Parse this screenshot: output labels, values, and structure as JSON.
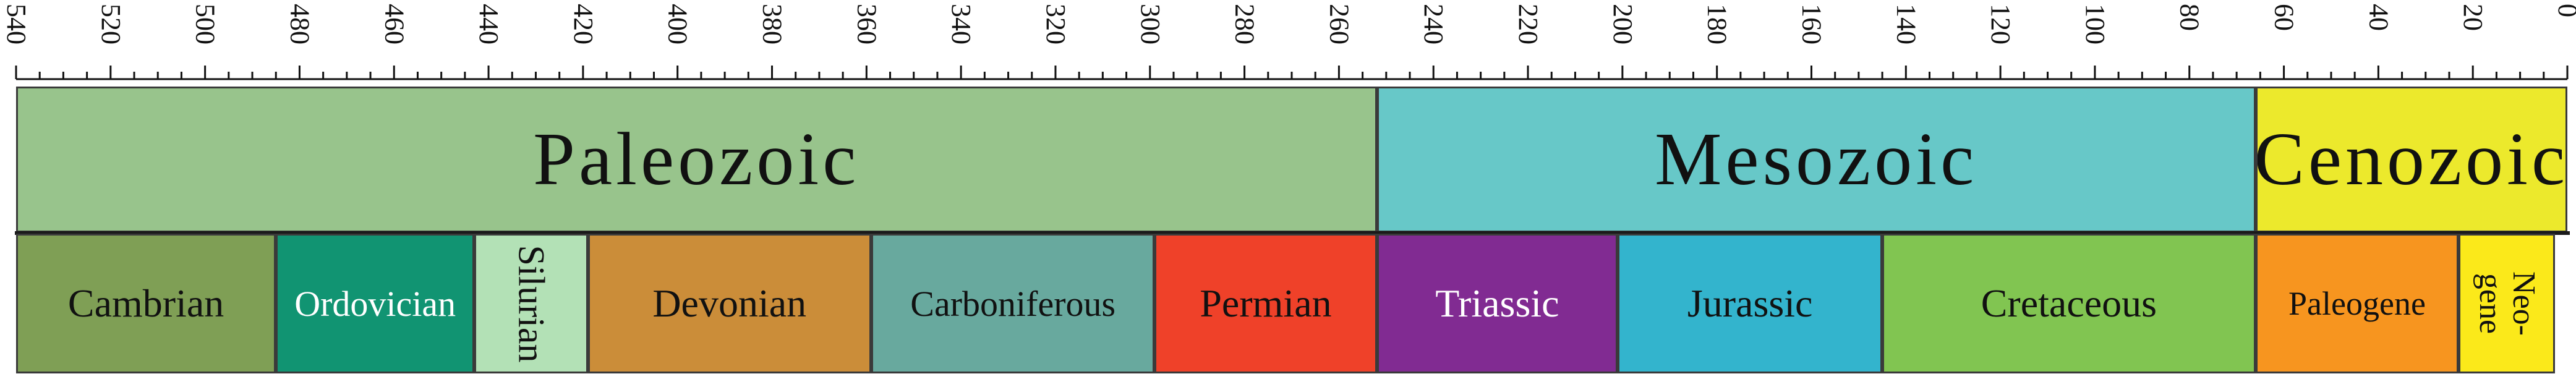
{
  "axis": {
    "max": 540,
    "min": 0,
    "labels": [
      "540",
      "520",
      "500",
      "480",
      "460",
      "440",
      "420",
      "400",
      "380",
      "360",
      "340",
      "320",
      "300",
      "280",
      "260",
      "240",
      "220",
      "200",
      "180",
      "160",
      "140",
      "120",
      "100",
      "80",
      "60",
      "40",
      "20",
      "0"
    ]
  },
  "eras": [
    {
      "id": "paleozoic",
      "label": "Paleozoic",
      "start": 541,
      "end": 252,
      "color": "#98c48c"
    },
    {
      "id": "mesozoic",
      "label": "Mesozoic",
      "start": 252,
      "end": 66,
      "color": "#67c8c8"
    },
    {
      "id": "cenozoic",
      "label": "Cenozoic",
      "start": 66,
      "end": 0,
      "color": "#ece92c"
    }
  ],
  "periods": [
    {
      "id": "cambrian",
      "label": "Cambrian",
      "start": 541,
      "end": 485,
      "color": "#7f9f55"
    },
    {
      "id": "ordovician",
      "label": "Ordovician",
      "start": 485,
      "end": 443,
      "color": "#119472"
    },
    {
      "id": "silurian",
      "label": "Silurian",
      "start": 443,
      "end": 419,
      "color": "#b3e1b6"
    },
    {
      "id": "devonian",
      "label": "Devonian",
      "start": 419,
      "end": 359,
      "color": "#cb8d39"
    },
    {
      "id": "carboniferous",
      "label": "Carboniferous",
      "start": 359,
      "end": 299,
      "color": "#68a99e"
    },
    {
      "id": "permian",
      "label": "Permian",
      "start": 299,
      "end": 252,
      "color": "#ef4129"
    },
    {
      "id": "triassic",
      "label": "Triassic",
      "start": 252,
      "end": 201,
      "color": "#812b92"
    },
    {
      "id": "jurassic",
      "label": "Jurassic",
      "start": 201,
      "end": 145,
      "color": "#33b4cd"
    },
    {
      "id": "cretaceous",
      "label": "Cretaceous",
      "start": 145,
      "end": 66,
      "color": "#81c551"
    },
    {
      "id": "paleogene",
      "label": "Paleogene",
      "start": 66,
      "end": 23,
      "color": "#f7951f"
    },
    {
      "id": "neogene",
      "label": "Neo-\ngene",
      "start": 23,
      "end": 2.6,
      "color": "#fbe91a"
    }
  ]
}
